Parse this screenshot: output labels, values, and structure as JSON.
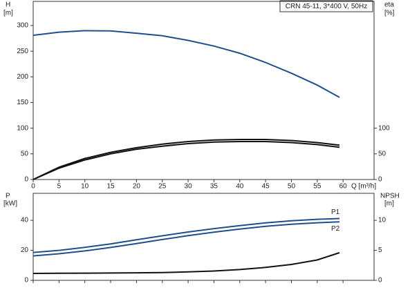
{
  "chart_data": [
    {
      "type": "line",
      "title": "CRN 45-11, 3*400 V, 50Hz",
      "ylabel": "H",
      "yunit": "[m]",
      "y2label": "eta",
      "y2unit": "[%]",
      "xlabel": "Q [m³/h]",
      "x": [
        0,
        5,
        10,
        15,
        20,
        25,
        30,
        35,
        40,
        45,
        50,
        55,
        59.3
      ],
      "xlim": [
        0,
        66
      ],
      "xticks": [
        0,
        5,
        10,
        15,
        20,
        25,
        30,
        35,
        40,
        45,
        50,
        55,
        60
      ],
      "ylim": [
        0,
        347
      ],
      "yticks": [
        0,
        50,
        100,
        150,
        200,
        250,
        300
      ],
      "y2lim": [
        0,
        347
      ],
      "y2ticks": [
        0,
        50,
        100
      ],
      "series": [
        {
          "color": "#1f4e8c",
          "values": [
            281,
            287,
            290,
            289.5,
            285,
            280,
            271,
            260,
            246,
            228,
            207,
            184,
            160
          ]
        },
        {
          "color": "#111111",
          "axis": "y2",
          "values": [
            0,
            24,
            41,
            53,
            62,
            69,
            74,
            77,
            78,
            78,
            76,
            72,
            67
          ]
        },
        {
          "color": "#111111",
          "axis": "y2",
          "values": [
            0,
            22,
            38,
            50,
            59,
            65,
            70,
            73,
            74,
            74,
            72,
            68,
            63
          ]
        }
      ]
    },
    {
      "type": "line",
      "ylabel": "P",
      "yunit": "[kW]",
      "y2label": "NPSH",
      "y2unit": "[m]",
      "x": [
        0,
        5,
        10,
        15,
        20,
        25,
        30,
        35,
        40,
        45,
        50,
        55,
        59.3
      ],
      "xlim": [
        0,
        66
      ],
      "ylim": [
        0,
        58
      ],
      "yticks": [
        0,
        20,
        40
      ],
      "y2lim": [
        0,
        14.5
      ],
      "y2ticks": [
        0,
        5,
        10
      ],
      "series": [
        {
          "name": "P1",
          "color": "#1f4e8c",
          "values": [
            18.6,
            20,
            22,
            24.3,
            27,
            29.7,
            32.2,
            34.5,
            36.5,
            38.3,
            39.7,
            40.7,
            41.2
          ]
        },
        {
          "name": "P2",
          "color": "#1f4e8c",
          "values": [
            16.3,
            17.7,
            19.6,
            21.9,
            24.5,
            27.2,
            29.8,
            32.1,
            34.2,
            36,
            37.4,
            38.4,
            39
          ]
        },
        {
          "color": "#111111",
          "axis": "y2",
          "values": [
            1.15,
            1.17,
            1.2,
            1.22,
            1.25,
            1.3,
            1.4,
            1.55,
            1.8,
            2.15,
            2.65,
            3.4,
            4.6
          ]
        }
      ]
    }
  ]
}
